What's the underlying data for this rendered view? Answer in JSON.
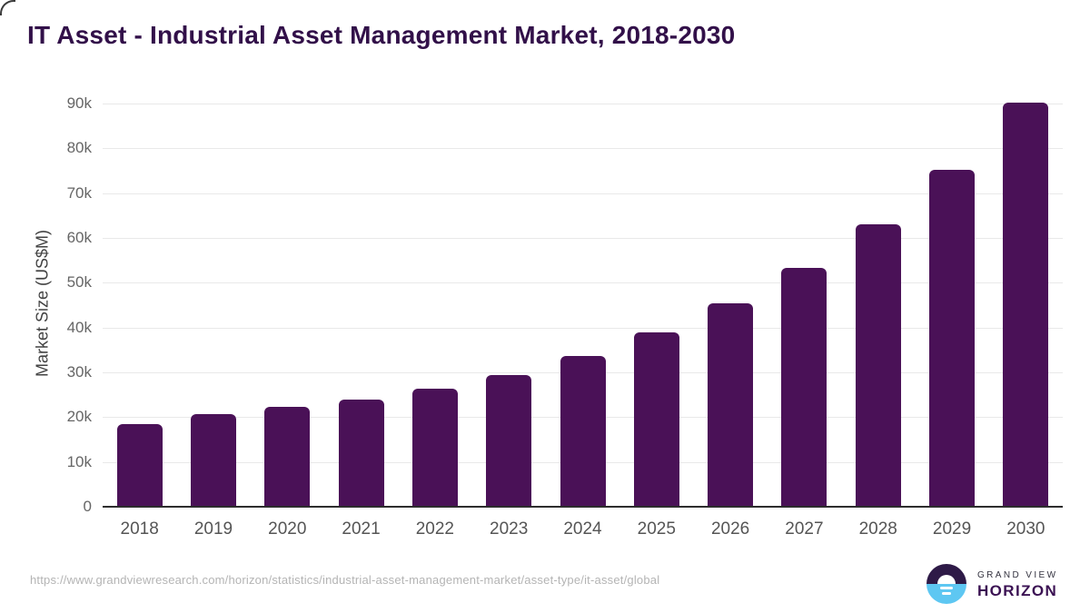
{
  "header": {
    "title": "IT Asset - Industrial Asset Management Market, 2018-2030"
  },
  "footer": {
    "source_url": "https://www.grandviewresearch.com/horizon/statistics/industrial-asset-management-market/asset-type/it-asset/global",
    "logo": {
      "top_text": "GRAND VIEW",
      "bottom_text": "HORIZON"
    }
  },
  "colors": {
    "bar": "#4a1157",
    "title": "#321049",
    "grid": "#e9e9e9",
    "axis_line": "#2d2d2d",
    "y_tick": "#666666",
    "x_tick": "#555555",
    "axis_title": "#424242",
    "url_text": "#b4b4b4",
    "logo_top_half": "#2e1a47",
    "logo_bottom_half": "#5ec7f2",
    "logo_grandview_text": "#33323f",
    "logo_horizon_text": "#3b1253"
  },
  "chart_data": {
    "type": "bar",
    "title": "IT Asset - Industrial Asset Management Market, 2018-2030",
    "categories": [
      "2018",
      "2019",
      "2020",
      "2021",
      "2022",
      "2023",
      "2024",
      "2025",
      "2026",
      "2027",
      "2028",
      "2029",
      "2030"
    ],
    "values": [
      18400,
      20600,
      22200,
      23900,
      26300,
      29400,
      33600,
      38900,
      45400,
      53300,
      63100,
      75300,
      90300
    ],
    "xlabel": "",
    "ylabel": "Market Size (US$M)",
    "ylim": [
      0,
      90000
    ],
    "ytick_values": [
      0,
      10000,
      20000,
      30000,
      40000,
      50000,
      60000,
      70000,
      80000,
      90000
    ],
    "ytick_labels": [
      "0",
      "10k",
      "20k",
      "30k",
      "40k",
      "50k",
      "60k",
      "70k",
      "80k",
      "90k"
    ],
    "grid": true,
    "legend": false,
    "bar_color": "#4a1157"
  }
}
